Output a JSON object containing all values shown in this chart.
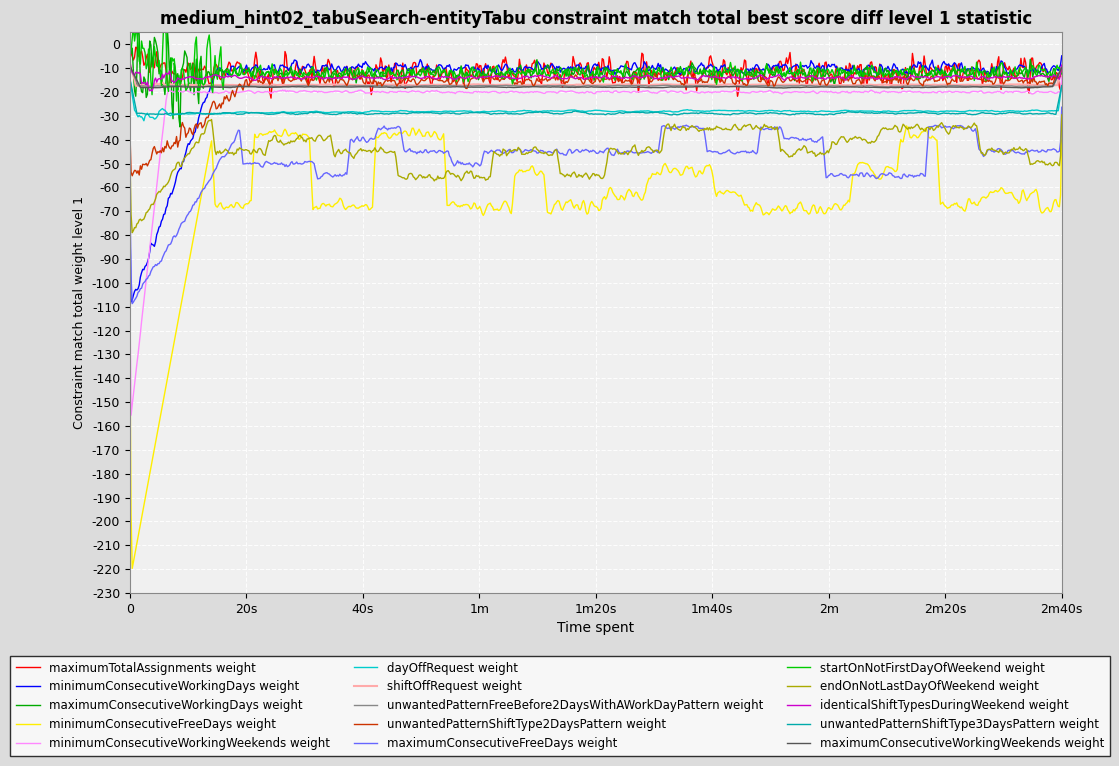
{
  "title": "medium_hint02_tabuSearch-entityTabu constraint match total best score diff level 1 statistic",
  "xlabel": "Time spent",
  "ylabel": "Constraint match total weight level 1",
  "xlim": [
    0,
    160
  ],
  "ylim": [
    -230,
    5
  ],
  "yticks": [
    0,
    -10,
    -20,
    -30,
    -40,
    -50,
    -60,
    -70,
    -80,
    -90,
    -100,
    -110,
    -120,
    -130,
    -140,
    -150,
    -160,
    -170,
    -180,
    -190,
    -200,
    -210,
    -220,
    -230
  ],
  "xtick_positions": [
    0,
    20,
    40,
    60,
    80,
    100,
    120,
    140,
    160
  ],
  "xtick_labels": [
    "0",
    "20s",
    "40s",
    "1m",
    "1m20s",
    "1m40s",
    "2m",
    "2m20s",
    "2m40s"
  ],
  "background_color": "#dcdcdc",
  "plot_bg_color": "#f0f0f0",
  "grid_color": "#ffffff",
  "title_fontsize": 12,
  "series": [
    {
      "name": "maximumTotalAssignments weight",
      "color": "#ff0000",
      "lw": 1.0
    },
    {
      "name": "minimumConsecutiveWorkingDays weight",
      "color": "#0000ff",
      "lw": 1.0
    },
    {
      "name": "maximumConsecutiveWorkingDays weight",
      "color": "#00aa00",
      "lw": 1.0
    },
    {
      "name": "minimumConsecutiveFreeDays weight",
      "color": "#ffee00",
      "lw": 1.0
    },
    {
      "name": "minimumConsecutiveWorkingWeekends weight",
      "color": "#ff88ff",
      "lw": 1.0
    },
    {
      "name": "dayOffRequest weight",
      "color": "#00cccc",
      "lw": 1.0
    },
    {
      "name": "shiftOffRequest weight",
      "color": "#ffaaaa",
      "lw": 1.5
    },
    {
      "name": "unwantedPatternFreeBefore2DaysWithAWorkDayPattern weight",
      "color": "#888888",
      "lw": 1.0
    },
    {
      "name": "unwantedPatternShiftType2DaysPattern weight",
      "color": "#cc3300",
      "lw": 1.0
    },
    {
      "name": "maximumConsecutiveFreeDays weight",
      "color": "#6666ff",
      "lw": 1.0
    },
    {
      "name": "startOnNotFirstDayOfWeekend weight",
      "color": "#00cc00",
      "lw": 1.0
    },
    {
      "name": "endOnNotLastDayOfWeekend weight",
      "color": "#aaaa00",
      "lw": 1.0
    },
    {
      "name": "identicalShiftTypesDuringWeekend weight",
      "color": "#cc00cc",
      "lw": 1.0
    },
    {
      "name": "unwantedPatternShiftType3DaysPattern weight",
      "color": "#00aaaa",
      "lw": 1.0
    },
    {
      "name": "maximumConsecutiveWorkingWeekends weight",
      "color": "#555555",
      "lw": 1.0
    }
  ],
  "legend_ncol": 3,
  "legend_fontsize": 8.5
}
